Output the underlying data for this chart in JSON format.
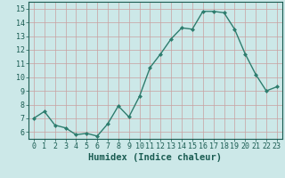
{
  "x": [
    0,
    1,
    2,
    3,
    4,
    5,
    6,
    7,
    8,
    9,
    10,
    11,
    12,
    13,
    14,
    15,
    16,
    17,
    18,
    19,
    20,
    21,
    22,
    23
  ],
  "y": [
    7.0,
    7.5,
    6.5,
    6.3,
    5.8,
    5.9,
    5.7,
    6.6,
    7.9,
    7.1,
    8.6,
    10.7,
    11.7,
    12.8,
    13.6,
    13.5,
    14.8,
    14.8,
    14.7,
    13.5,
    11.7,
    10.2,
    9.0,
    9.3
  ],
  "xlabel": "Humidex (Indice chaleur)",
  "xlim": [
    -0.5,
    23.5
  ],
  "ylim": [
    5.5,
    15.5
  ],
  "yticks": [
    6,
    7,
    8,
    9,
    10,
    11,
    12,
    13,
    14,
    15
  ],
  "xticks": [
    0,
    1,
    2,
    3,
    4,
    5,
    6,
    7,
    8,
    9,
    10,
    11,
    12,
    13,
    14,
    15,
    16,
    17,
    18,
    19,
    20,
    21,
    22,
    23
  ],
  "line_color": "#2e7d6e",
  "marker": "D",
  "marker_size": 2.0,
  "bg_color": "#cce8e8",
  "grid_color": "#b8d4d4",
  "tick_color": "#1a5c52",
  "label_color": "#1a5c52",
  "xlabel_fontsize": 7.5,
  "tick_fontsize": 6.0,
  "linewidth": 1.0
}
